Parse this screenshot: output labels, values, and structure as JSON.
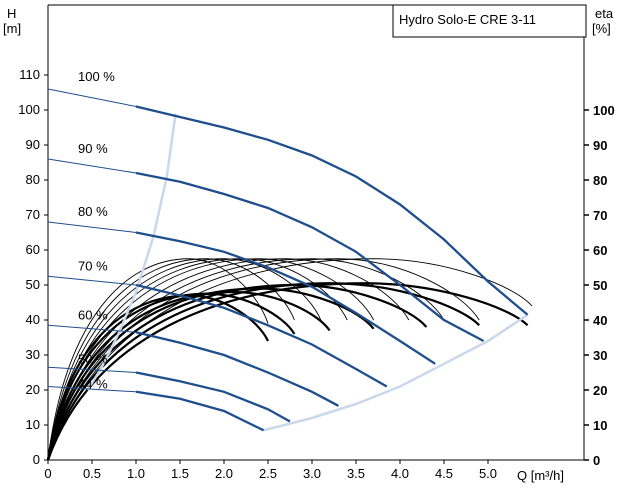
{
  "title": "Hydro Solo-E CRE 3-11",
  "y_axis": {
    "label_line1": "H",
    "label_line2": "[m]"
  },
  "y2_axis": {
    "label_line1": "eta",
    "label_line2": "[%]"
  },
  "x_axis": {
    "label": "Q [m³/h]"
  },
  "colors": {
    "pump_curve": "#1f4e8c",
    "system_boundary": "#c9d8ea",
    "efficiency": "#000000",
    "axis": "#000000"
  },
  "chart_data": {
    "type": "line",
    "title": "Hydro Solo-E CRE 3-11",
    "xlabel": "Q [m³/h]",
    "ylabel": "H [m]",
    "y2label": "eta [%]",
    "xlim": [
      0,
      6
    ],
    "ylim": [
      0,
      120
    ],
    "y2lim": [
      0,
      120
    ],
    "x_ticks": [
      0,
      0.5,
      1.0,
      1.5,
      2.0,
      2.5,
      3.0,
      3.5,
      4.0,
      4.5,
      5.0
    ],
    "x_tick_labels": [
      "0",
      "0.5",
      "1.0",
      "1.5",
      "2.0",
      "2.5",
      "3.0",
      "3.5",
      "4.0",
      "4.5",
      "5.0"
    ],
    "y_ticks": [
      0,
      10,
      20,
      30,
      40,
      50,
      60,
      70,
      80,
      90,
      100,
      110
    ],
    "y2_ticks": [
      0,
      10,
      20,
      30,
      40,
      50,
      60,
      70,
      80,
      90,
      100
    ],
    "grid": false,
    "speed_curves": [
      {
        "label": "100 %",
        "x": [
          0,
          1.0,
          1.5,
          2.0,
          2.5,
          3.0,
          3.5,
          4.0,
          4.5,
          5.0,
          5.45
        ],
        "y": [
          106,
          101,
          98,
          95,
          91.5,
          87,
          81,
          73,
          63,
          51,
          41.5
        ]
      },
      {
        "label": "90 %",
        "x": [
          0,
          1.0,
          1.5,
          2.0,
          2.5,
          3.0,
          3.5,
          4.0,
          4.5,
          4.95
        ],
        "y": [
          86,
          82,
          79.5,
          76,
          72,
          66.5,
          59.5,
          50,
          40,
          34
        ]
      },
      {
        "label": "80 %",
        "x": [
          0,
          1.0,
          1.5,
          2.0,
          2.5,
          3.0,
          3.5,
          4.0,
          4.4
        ],
        "y": [
          68,
          65,
          62.5,
          59.5,
          55,
          49.5,
          42,
          34,
          27.5
        ]
      },
      {
        "label": "70 %",
        "x": [
          0,
          1.0,
          1.5,
          2.0,
          2.5,
          3.0,
          3.5,
          3.85
        ],
        "y": [
          52.5,
          50,
          47,
          43.5,
          38.5,
          33,
          26,
          21
        ]
      },
      {
        "label": "60 %",
        "x": [
          0,
          1.0,
          1.5,
          2.0,
          2.5,
          3.0,
          3.3
        ],
        "y": [
          38.5,
          36.5,
          33.5,
          30,
          25,
          19.5,
          15.5
        ]
      },
      {
        "label": "50 %",
        "x": [
          0,
          1.0,
          1.5,
          2.0,
          2.5,
          2.75
        ],
        "y": [
          26.5,
          25,
          22.5,
          19.5,
          14.5,
          11
        ]
      },
      {
        "label": "44 %",
        "x": [
          0,
          1.0,
          1.5,
          2.0,
          2.45
        ],
        "y": [
          21,
          19.5,
          17.5,
          14,
          8.5
        ]
      }
    ],
    "min_boundary": {
      "x": [
        1.45,
        1.35,
        1.2,
        1.0,
        0.8,
        0.6,
        0.45
      ],
      "y": [
        99,
        81,
        64,
        48,
        36,
        26,
        20
      ]
    },
    "max_boundary": {
      "x": [
        2.45,
        3.0,
        3.5,
        4.0,
        4.5,
        5.0,
        5.45
      ],
      "y": [
        8.5,
        12,
        16,
        21,
        27.5,
        34,
        41.5
      ]
    },
    "efficiency_curves": [
      {
        "peak_x": 1.6,
        "peak_y": 57.5,
        "end_x": 2.5,
        "end_y": 39,
        "bold": false
      },
      {
        "peak_x": 1.8,
        "peak_y": 57.5,
        "end_x": 2.8,
        "end_y": 40,
        "bold": false
      },
      {
        "peak_x": 2.0,
        "peak_y": 57.5,
        "end_x": 3.1,
        "end_y": 40,
        "bold": false
      },
      {
        "peak_x": 2.2,
        "peak_y": 57.5,
        "end_x": 3.4,
        "end_y": 40,
        "bold": false
      },
      {
        "peak_x": 2.4,
        "peak_y": 57.5,
        "end_x": 3.7,
        "end_y": 40,
        "bold": false
      },
      {
        "peak_x": 2.7,
        "peak_y": 57.5,
        "end_x": 4.1,
        "end_y": 40,
        "bold": false
      },
      {
        "peak_x": 3.0,
        "peak_y": 57.5,
        "end_x": 4.5,
        "end_y": 40,
        "bold": false
      },
      {
        "peak_x": 3.3,
        "peak_y": 57.5,
        "end_x": 4.9,
        "end_y": 40,
        "bold": false
      },
      {
        "peak_x": 3.7,
        "peak_y": 57.5,
        "end_x": 5.5,
        "end_y": 44,
        "bold": false
      },
      {
        "peak_x": 1.6,
        "peak_y": 47,
        "end_x": 2.5,
        "end_y": 34,
        "bold": true
      },
      {
        "peak_x": 1.8,
        "peak_y": 47.5,
        "end_x": 2.8,
        "end_y": 36,
        "bold": true
      },
      {
        "peak_x": 2.1,
        "peak_y": 48,
        "end_x": 3.2,
        "end_y": 37,
        "bold": true
      },
      {
        "peak_x": 2.4,
        "peak_y": 49,
        "end_x": 3.7,
        "end_y": 37.5,
        "bold": true
      },
      {
        "peak_x": 2.8,
        "peak_y": 50,
        "end_x": 4.3,
        "end_y": 38,
        "bold": true
      },
      {
        "peak_x": 3.2,
        "peak_y": 50.5,
        "end_x": 4.9,
        "end_y": 38.5,
        "bold": true
      },
      {
        "peak_x": 3.6,
        "peak_y": 50.5,
        "end_x": 5.45,
        "end_y": 38.5,
        "bold": true
      }
    ]
  }
}
